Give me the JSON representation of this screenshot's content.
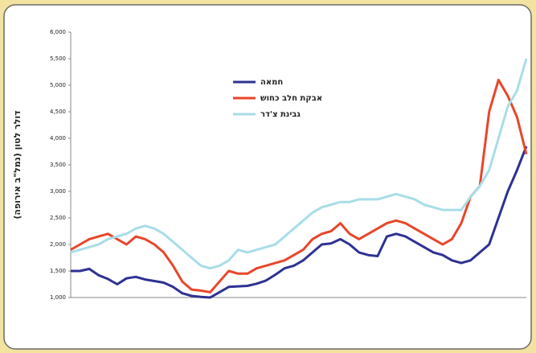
{
  "chart_data": {
    "type": "line",
    "y_label": "דולר לטון (נמל\"ב אירופה)",
    "categories": [
      null,
      null,
      null,
      null,
      null,
      null,
      null,
      null,
      null,
      null,
      null,
      null,
      null,
      null,
      null,
      null,
      null,
      null,
      null,
      null,
      null,
      null,
      null,
      null,
      null,
      null,
      null,
      null,
      null,
      null,
      null,
      null,
      null,
      null,
      null,
      null,
      null,
      null,
      null,
      null,
      null,
      null,
      null,
      null,
      null,
      null,
      null,
      null,
      null,
      null
    ],
    "series": [
      {
        "name": "חמאה",
        "color": "#2e3192",
        "values": [
          1500,
          1500,
          1540,
          1420,
          1350,
          1250,
          1360,
          1390,
          1340,
          1310,
          1280,
          1200,
          1080,
          1030,
          1010,
          1000,
          1100,
          1200,
          1210,
          1220,
          1260,
          1320,
          1430,
          1550,
          1600,
          1700,
          1850,
          2000,
          2020,
          2100,
          2000,
          1850,
          1800,
          1780,
          2150,
          2200,
          2150,
          2050,
          1950,
          1850,
          1800,
          1700,
          1650,
          1700,
          1850,
          2000,
          2500,
          3000,
          3400,
          3850
        ]
      },
      {
        "name": "אבקת חלב כחוש",
        "color": "#e8462a",
        "values": [
          1900,
          2000,
          2100,
          2150,
          2200,
          2100,
          2000,
          2150,
          2100,
          2000,
          1850,
          1600,
          1300,
          1150,
          1130,
          1100,
          1300,
          1500,
          1450,
          1450,
          1550,
          1600,
          1650,
          1700,
          1800,
          1900,
          2100,
          2200,
          2250,
          2400,
          2200,
          2100,
          2200,
          2300,
          2400,
          2450,
          2400,
          2300,
          2200,
          2100,
          2000,
          2100,
          2400,
          2900,
          3100,
          4500,
          5100,
          4800,
          4400,
          3700
        ]
      },
      {
        "name": "גבינת צ'דר",
        "color": "#a8dde8",
        "values": [
          1850,
          1900,
          1950,
          2000,
          2100,
          2150,
          2200,
          2300,
          2350,
          2300,
          2200,
          2050,
          1900,
          1750,
          1600,
          1550,
          1600,
          1700,
          1900,
          1850,
          1900,
          1950,
          2000,
          2150,
          2300,
          2450,
          2600,
          2700,
          2750,
          2800,
          2800,
          2850,
          2850,
          2850,
          2900,
          2950,
          2900,
          2850,
          2750,
          2700,
          2650,
          2650,
          2650,
          2900,
          3100,
          3400,
          4000,
          4600,
          4900,
          5500
        ]
      }
    ],
    "ylim": [
      1000,
      6000
    ],
    "yticks": [
      {
        "value": 1000,
        "label": "1,000"
      },
      {
        "value": 1500,
        "label": "1,500"
      },
      {
        "value": 2000,
        "label": "2,000"
      },
      {
        "value": 2500,
        "label": "2,500"
      },
      {
        "value": 3000,
        "label": "3,000"
      },
      {
        "value": 3500,
        "label": "3,500"
      },
      {
        "value": 4000,
        "label": "4,000"
      },
      {
        "value": 4500,
        "label": "4,500"
      },
      {
        "value": 5000,
        "label": "5,000"
      },
      {
        "value": 5500,
        "label": "5,500"
      },
      {
        "value": 6000,
        "label": "6,000"
      }
    ],
    "grid": false
  }
}
